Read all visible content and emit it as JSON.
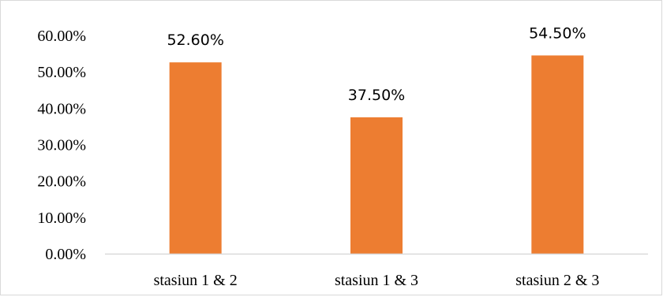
{
  "chart_data": {
    "type": "bar",
    "title": "",
    "xlabel": "",
    "ylabel": "",
    "categories": [
      "stasiun 1 & 2",
      "stasiun 1 & 3",
      "stasiun 2 & 3"
    ],
    "values": [
      52.6,
      37.5,
      54.5
    ],
    "data_labels": [
      "52.60%",
      "37.50%",
      "54.50%"
    ],
    "y_ticks": [
      "0.00%",
      "10.00%",
      "20.00%",
      "30.00%",
      "40.00%",
      "50.00%",
      "60.00%"
    ],
    "y_tick_values": [
      0,
      10,
      20,
      30,
      40,
      50,
      60
    ],
    "ylim": [
      0,
      60
    ],
    "grid": false,
    "legend": "none",
    "bar_color": "#ed7d31",
    "axis_color": "#d9d9d9"
  }
}
